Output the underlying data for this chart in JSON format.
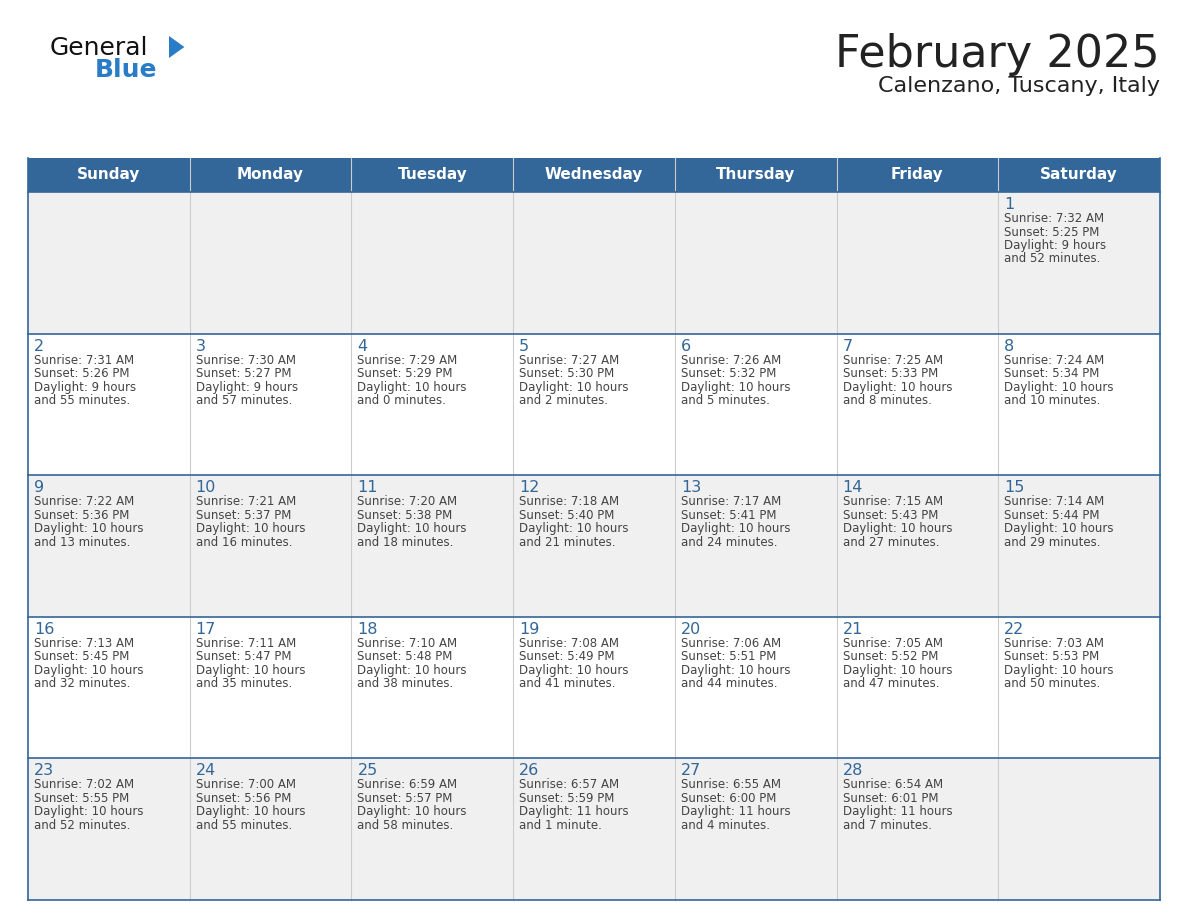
{
  "title": "February 2025",
  "subtitle": "Calenzano, Tuscany, Italy",
  "header_bg": "#336699",
  "header_text": "#FFFFFF",
  "row_bg_odd": "#F0F0F0",
  "row_bg_even": "#FFFFFF",
  "text_color": "#444444",
  "day_number_color": "#336699",
  "border_color": "#336699",
  "cell_border_color": "#CCCCCC",
  "days_of_week": [
    "Sunday",
    "Monday",
    "Tuesday",
    "Wednesday",
    "Thursday",
    "Friday",
    "Saturday"
  ],
  "logo_general_color": "#111111",
  "logo_blue_color": "#2A7CC7",
  "logo_triangle_color": "#2A7CC7",
  "calendar": [
    [
      null,
      null,
      null,
      null,
      null,
      null,
      {
        "day": "1",
        "sunrise": "7:32 AM",
        "sunset": "5:25 PM",
        "daylight_l1": "9 hours",
        "daylight_l2": "and 52 minutes."
      }
    ],
    [
      {
        "day": "2",
        "sunrise": "7:31 AM",
        "sunset": "5:26 PM",
        "daylight_l1": "9 hours",
        "daylight_l2": "and 55 minutes."
      },
      {
        "day": "3",
        "sunrise": "7:30 AM",
        "sunset": "5:27 PM",
        "daylight_l1": "9 hours",
        "daylight_l2": "and 57 minutes."
      },
      {
        "day": "4",
        "sunrise": "7:29 AM",
        "sunset": "5:29 PM",
        "daylight_l1": "10 hours",
        "daylight_l2": "and 0 minutes."
      },
      {
        "day": "5",
        "sunrise": "7:27 AM",
        "sunset": "5:30 PM",
        "daylight_l1": "10 hours",
        "daylight_l2": "and 2 minutes."
      },
      {
        "day": "6",
        "sunrise": "7:26 AM",
        "sunset": "5:32 PM",
        "daylight_l1": "10 hours",
        "daylight_l2": "and 5 minutes."
      },
      {
        "day": "7",
        "sunrise": "7:25 AM",
        "sunset": "5:33 PM",
        "daylight_l1": "10 hours",
        "daylight_l2": "and 8 minutes."
      },
      {
        "day": "8",
        "sunrise": "7:24 AM",
        "sunset": "5:34 PM",
        "daylight_l1": "10 hours",
        "daylight_l2": "and 10 minutes."
      }
    ],
    [
      {
        "day": "9",
        "sunrise": "7:22 AM",
        "sunset": "5:36 PM",
        "daylight_l1": "10 hours",
        "daylight_l2": "and 13 minutes."
      },
      {
        "day": "10",
        "sunrise": "7:21 AM",
        "sunset": "5:37 PM",
        "daylight_l1": "10 hours",
        "daylight_l2": "and 16 minutes."
      },
      {
        "day": "11",
        "sunrise": "7:20 AM",
        "sunset": "5:38 PM",
        "daylight_l1": "10 hours",
        "daylight_l2": "and 18 minutes."
      },
      {
        "day": "12",
        "sunrise": "7:18 AM",
        "sunset": "5:40 PM",
        "daylight_l1": "10 hours",
        "daylight_l2": "and 21 minutes."
      },
      {
        "day": "13",
        "sunrise": "7:17 AM",
        "sunset": "5:41 PM",
        "daylight_l1": "10 hours",
        "daylight_l2": "and 24 minutes."
      },
      {
        "day": "14",
        "sunrise": "7:15 AM",
        "sunset": "5:43 PM",
        "daylight_l1": "10 hours",
        "daylight_l2": "and 27 minutes."
      },
      {
        "day": "15",
        "sunrise": "7:14 AM",
        "sunset": "5:44 PM",
        "daylight_l1": "10 hours",
        "daylight_l2": "and 29 minutes."
      }
    ],
    [
      {
        "day": "16",
        "sunrise": "7:13 AM",
        "sunset": "5:45 PM",
        "daylight_l1": "10 hours",
        "daylight_l2": "and 32 minutes."
      },
      {
        "day": "17",
        "sunrise": "7:11 AM",
        "sunset": "5:47 PM",
        "daylight_l1": "10 hours",
        "daylight_l2": "and 35 minutes."
      },
      {
        "day": "18",
        "sunrise": "7:10 AM",
        "sunset": "5:48 PM",
        "daylight_l1": "10 hours",
        "daylight_l2": "and 38 minutes."
      },
      {
        "day": "19",
        "sunrise": "7:08 AM",
        "sunset": "5:49 PM",
        "daylight_l1": "10 hours",
        "daylight_l2": "and 41 minutes."
      },
      {
        "day": "20",
        "sunrise": "7:06 AM",
        "sunset": "5:51 PM",
        "daylight_l1": "10 hours",
        "daylight_l2": "and 44 minutes."
      },
      {
        "day": "21",
        "sunrise": "7:05 AM",
        "sunset": "5:52 PM",
        "daylight_l1": "10 hours",
        "daylight_l2": "and 47 minutes."
      },
      {
        "day": "22",
        "sunrise": "7:03 AM",
        "sunset": "5:53 PM",
        "daylight_l1": "10 hours",
        "daylight_l2": "and 50 minutes."
      }
    ],
    [
      {
        "day": "23",
        "sunrise": "7:02 AM",
        "sunset": "5:55 PM",
        "daylight_l1": "10 hours",
        "daylight_l2": "and 52 minutes."
      },
      {
        "day": "24",
        "sunrise": "7:00 AM",
        "sunset": "5:56 PM",
        "daylight_l1": "10 hours",
        "daylight_l2": "and 55 minutes."
      },
      {
        "day": "25",
        "sunrise": "6:59 AM",
        "sunset": "5:57 PM",
        "daylight_l1": "10 hours",
        "daylight_l2": "and 58 minutes."
      },
      {
        "day": "26",
        "sunrise": "6:57 AM",
        "sunset": "5:59 PM",
        "daylight_l1": "11 hours",
        "daylight_l2": "and 1 minute."
      },
      {
        "day": "27",
        "sunrise": "6:55 AM",
        "sunset": "6:00 PM",
        "daylight_l1": "11 hours",
        "daylight_l2": "and 4 minutes."
      },
      {
        "day": "28",
        "sunrise": "6:54 AM",
        "sunset": "6:01 PM",
        "daylight_l1": "11 hours",
        "daylight_l2": "and 7 minutes."
      },
      null
    ]
  ]
}
